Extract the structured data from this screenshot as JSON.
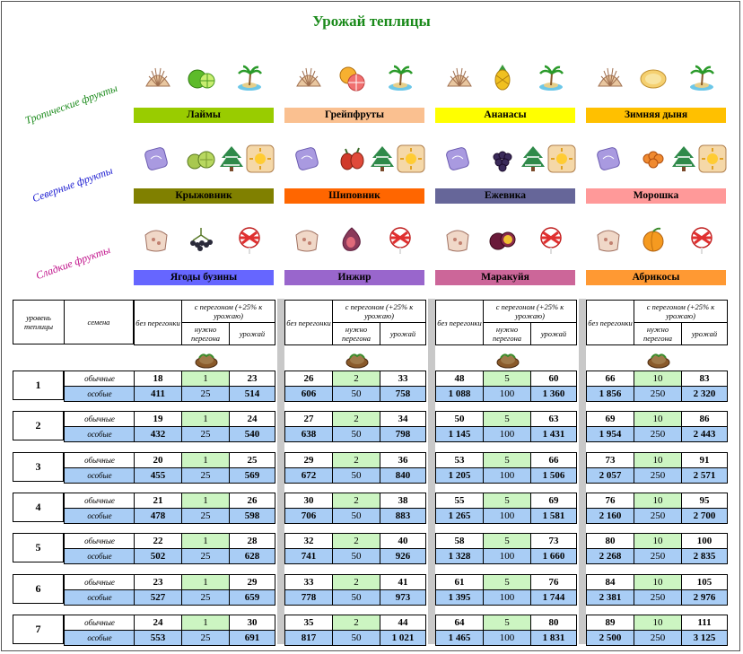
{
  "title": "Урожай теплицы",
  "groups": [
    {
      "label": "Тропические фрукты",
      "color": "#1a8a1a"
    },
    {
      "label": "Северные фрукты",
      "color": "#1a1ad0"
    },
    {
      "label": "Сладкие фрукты",
      "color": "#c0108a"
    }
  ],
  "crops": [
    [
      {
        "name": "Лаймы",
        "bar": "#99cc00",
        "fruit": "lime-icon"
      },
      {
        "name": "Грейпфруты",
        "bar": "#fac090",
        "fruit": "grapefruit-icon"
      },
      {
        "name": "Ананасы",
        "bar": "#ffff00",
        "fruit": "pineapple-icon"
      },
      {
        "name": "Зимняя дыня",
        "bar": "#ffc000",
        "fruit": "melon-icon"
      }
    ],
    [
      {
        "name": "Крыжовник",
        "bar": "#808000",
        "fruit": "gooseberry-icon"
      },
      {
        "name": "Шиповник",
        "bar": "#ff6600",
        "fruit": "rosehip-icon"
      },
      {
        "name": "Ежевика",
        "bar": "#666699",
        "fruit": "blackberry-icon"
      },
      {
        "name": "Морошка",
        "bar": "#ff9999",
        "fruit": "cloudberry-icon"
      }
    ],
    [
      {
        "name": "Ягоды бузины",
        "bar": "#6666ff",
        "fruit": "elderberry-icon"
      },
      {
        "name": "Инжир",
        "bar": "#9966cc",
        "fruit": "fig-icon"
      },
      {
        "name": "Маракуйя",
        "bar": "#cc6699",
        "fruit": "passionfruit-icon"
      },
      {
        "name": "Абрикосы",
        "bar": "#ff9933",
        "fruit": "apricot-icon"
      }
    ]
  ],
  "header": {
    "level": "уровень теплицы",
    "seeds": "семена",
    "no_distill": "без перегонки",
    "with_distill": "с перегоном (+25% к урожаю)",
    "needed": "нужно перегона",
    "yield": "урожай"
  },
  "row_types": {
    "normal": "обычные",
    "special": "особые"
  },
  "levels": [
    {
      "n": "1",
      "t": [
        [
          [
            "18",
            "1",
            "23"
          ],
          [
            "411",
            "25",
            "514"
          ]
        ],
        [
          [
            "26",
            "2",
            "33"
          ],
          [
            "606",
            "50",
            "758"
          ]
        ],
        [
          [
            "48",
            "5",
            "60"
          ],
          [
            "1 088",
            "100",
            "1 360"
          ]
        ],
        [
          [
            "66",
            "10",
            "83"
          ],
          [
            "1 856",
            "250",
            "2 320"
          ]
        ]
      ]
    },
    {
      "n": "2",
      "t": [
        [
          [
            "19",
            "1",
            "24"
          ],
          [
            "432",
            "25",
            "540"
          ]
        ],
        [
          [
            "27",
            "2",
            "34"
          ],
          [
            "638",
            "50",
            "798"
          ]
        ],
        [
          [
            "50",
            "5",
            "63"
          ],
          [
            "1 145",
            "100",
            "1 431"
          ]
        ],
        [
          [
            "69",
            "10",
            "86"
          ],
          [
            "1 954",
            "250",
            "2 443"
          ]
        ]
      ]
    },
    {
      "n": "3",
      "t": [
        [
          [
            "20",
            "1",
            "25"
          ],
          [
            "455",
            "25",
            "569"
          ]
        ],
        [
          [
            "29",
            "2",
            "36"
          ],
          [
            "672",
            "50",
            "840"
          ]
        ],
        [
          [
            "53",
            "5",
            "66"
          ],
          [
            "1 205",
            "100",
            "1 506"
          ]
        ],
        [
          [
            "73",
            "10",
            "91"
          ],
          [
            "2 057",
            "250",
            "2 571"
          ]
        ]
      ]
    },
    {
      "n": "4",
      "t": [
        [
          [
            "21",
            "1",
            "26"
          ],
          [
            "478",
            "25",
            "598"
          ]
        ],
        [
          [
            "30",
            "2",
            "38"
          ],
          [
            "706",
            "50",
            "883"
          ]
        ],
        [
          [
            "55",
            "5",
            "69"
          ],
          [
            "1 265",
            "100",
            "1 581"
          ]
        ],
        [
          [
            "76",
            "10",
            "95"
          ],
          [
            "2 160",
            "250",
            "2 700"
          ]
        ]
      ]
    },
    {
      "n": "5",
      "t": [
        [
          [
            "22",
            "1",
            "28"
          ],
          [
            "502",
            "25",
            "628"
          ]
        ],
        [
          [
            "32",
            "2",
            "40"
          ],
          [
            "741",
            "50",
            "926"
          ]
        ],
        [
          [
            "58",
            "5",
            "73"
          ],
          [
            "1 328",
            "100",
            "1 660"
          ]
        ],
        [
          [
            "80",
            "10",
            "100"
          ],
          [
            "2 268",
            "250",
            "2 835"
          ]
        ]
      ]
    },
    {
      "n": "6",
      "t": [
        [
          [
            "23",
            "1",
            "29"
          ],
          [
            "527",
            "25",
            "659"
          ]
        ],
        [
          [
            "33",
            "2",
            "41"
          ],
          [
            "778",
            "50",
            "973"
          ]
        ],
        [
          [
            "61",
            "5",
            "76"
          ],
          [
            "1 395",
            "100",
            "1 744"
          ]
        ],
        [
          [
            "84",
            "10",
            "105"
          ],
          [
            "2 381",
            "250",
            "2 976"
          ]
        ]
      ]
    },
    {
      "n": "7",
      "t": [
        [
          [
            "24",
            "1",
            "30"
          ],
          [
            "553",
            "25",
            "691"
          ]
        ],
        [
          [
            "35",
            "2",
            "44"
          ],
          [
            "817",
            "50",
            "1 021"
          ]
        ],
        [
          [
            "64",
            "5",
            "80"
          ],
          [
            "1 465",
            "100",
            "1 831"
          ]
        ],
        [
          [
            "89",
            "10",
            "111"
          ],
          [
            "2 500",
            "250",
            "3 125"
          ]
        ]
      ]
    }
  ]
}
